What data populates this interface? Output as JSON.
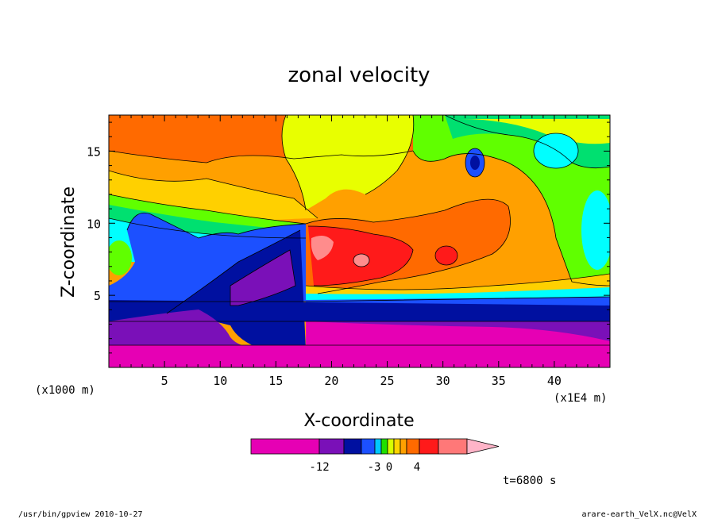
{
  "chart_data": {
    "type": "heatmap",
    "title": "zonal velocity",
    "xlabel": "X-coordinate",
    "ylabel": "Z-coordinate",
    "x_unit_left": "(x1000 m)",
    "x_unit_right": "(x1E4 m)",
    "xlim": [
      0,
      45
    ],
    "ylim": [
      0,
      17.5
    ],
    "x_ticks": [
      "5",
      "10",
      "15",
      "20",
      "25",
      "30",
      "35",
      "40"
    ],
    "y_ticks": [
      "5",
      "10",
      "15"
    ],
    "colorbar": {
      "labels": [
        "-12",
        "-3",
        "0",
        "4"
      ],
      "colors": [
        "#e600b4",
        "#7a10b8",
        "#0010a0",
        "#1c50ff",
        "#00c8ff",
        "#20e000",
        "#d8ff00",
        "#ffd400",
        "#ffa000",
        "#ff6a00",
        "#ff1a1a",
        "#ff7878",
        "#ffb4c8"
      ]
    },
    "time_label": "t=6800 s",
    "palette": {
      "magenta": "#e600b4",
      "purple": "#7a10b8",
      "navy": "#0010a0",
      "blue": "#1c50ff",
      "cyan": "#00ffff",
      "green": "#00e070",
      "lime": "#60ff00",
      "yellow": "#e8ff00",
      "gold": "#ffd000",
      "orange": "#ffa000",
      "darkorange": "#ff6a00",
      "red": "#ff1a1a",
      "pink": "#ff8c8c"
    }
  },
  "footer": {
    "left": "/usr/bin/gpview   2010-10-27",
    "right": "arare-earth_VelX.nc@VelX"
  }
}
